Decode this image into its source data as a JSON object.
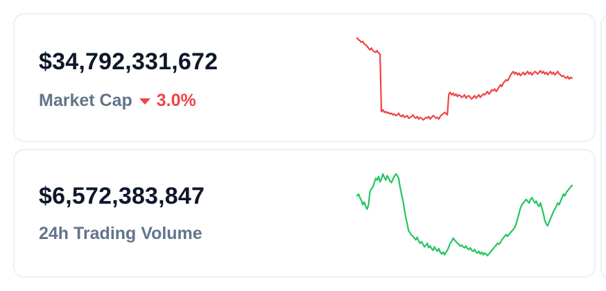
{
  "cards": [
    {
      "value": "$34,792,331,672",
      "label": "Market Cap",
      "change": "3.0%",
      "change_direction": "down",
      "sparkline_color": "#ef4444",
      "sparkline": [
        98,
        96,
        95,
        93,
        94,
        91,
        90,
        88,
        86,
        84,
        86,
        83,
        82,
        81,
        83,
        80,
        79,
        10,
        12,
        9,
        10,
        8,
        9,
        7,
        8,
        6,
        7,
        5,
        6,
        8,
        5,
        4,
        6,
        3,
        4,
        5,
        2,
        3,
        4,
        6,
        3,
        2,
        4,
        1,
        3,
        2,
        0,
        1,
        3,
        2,
        4,
        1,
        3,
        5,
        4,
        2,
        3,
        1,
        4,
        6,
        7,
        9,
        8,
        6,
        31,
        33,
        30,
        32,
        29,
        31,
        28,
        30,
        29,
        27,
        28,
        30,
        26,
        28,
        29,
        27,
        25,
        27,
        29,
        26,
        28,
        30,
        27,
        29,
        31,
        30,
        32,
        34,
        31,
        33,
        36,
        35,
        37,
        34,
        36,
        39,
        42,
        40,
        44,
        46,
        48,
        47,
        50,
        53,
        56,
        58,
        55,
        57,
        54,
        56,
        53,
        55,
        57,
        54,
        56,
        58,
        55,
        57,
        54,
        56,
        58,
        57,
        55,
        57,
        59,
        56,
        58,
        55,
        57,
        54,
        56,
        58,
        55,
        57,
        54,
        56,
        58,
        55,
        54,
        52,
        53,
        51,
        50,
        52,
        49,
        51,
        50
      ]
    },
    {
      "value": "$6,572,383,847",
      "label": "24h Trading Volume",
      "sparkline_color": "#22c55e",
      "sparkline": [
        70,
        72,
        68,
        65,
        60,
        63,
        58,
        55,
        60,
        75,
        78,
        80,
        85,
        90,
        88,
        92,
        86,
        89,
        95,
        91,
        88,
        93,
        90,
        87,
        85,
        89,
        92,
        95,
        93,
        90,
        80,
        72,
        65,
        55,
        45,
        38,
        30,
        28,
        25,
        24,
        22,
        20,
        23,
        18,
        16,
        18,
        15,
        12,
        14,
        16,
        11,
        13,
        10,
        8,
        12,
        9,
        7,
        10,
        6,
        4,
        6,
        3,
        6,
        8,
        12,
        16,
        18,
        22,
        20,
        18,
        16,
        15,
        13,
        14,
        12,
        11,
        13,
        10,
        9,
        11,
        8,
        7,
        9,
        6,
        5,
        7,
        4,
        6,
        3,
        5,
        4,
        2,
        4,
        6,
        8,
        10,
        12,
        14,
        16,
        15,
        17,
        20,
        22,
        24,
        26,
        24,
        26,
        28,
        30,
        32,
        34,
        38,
        44,
        50,
        56,
        60,
        62,
        64,
        66,
        64,
        62,
        66,
        68,
        65,
        62,
        64,
        60,
        58,
        62,
        56,
        50,
        42,
        38,
        36,
        40,
        44,
        48,
        52,
        55,
        58,
        62,
        60,
        64,
        68,
        72,
        70,
        74,
        76,
        78,
        80,
        82
      ]
    }
  ]
}
